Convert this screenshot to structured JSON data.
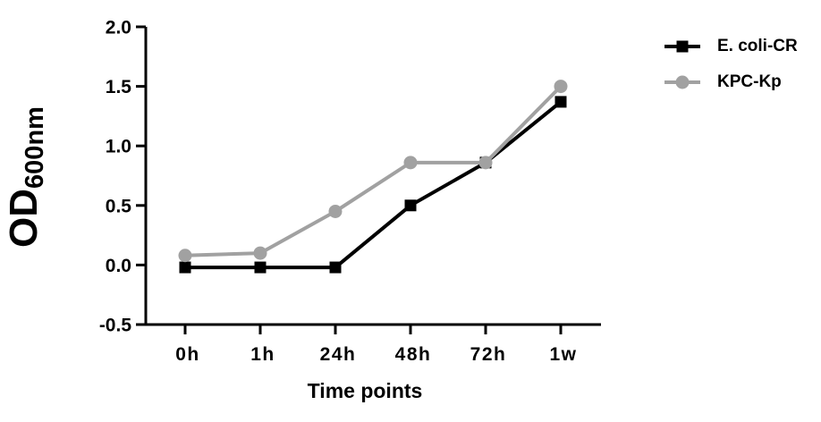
{
  "chart_data": {
    "type": "line",
    "title": "",
    "xlabel": "Time points",
    "ylabel": "OD",
    "ylabel_subscript": "600nm",
    "categories": [
      "0h",
      "1h",
      "24h",
      "48h",
      "72h",
      "1w"
    ],
    "series": [
      {
        "name": "E. coli-CR",
        "color": "#000000",
        "marker": "square",
        "values": [
          -0.02,
          -0.02,
          -0.02,
          0.5,
          0.86,
          1.37
        ]
      },
      {
        "name": "KPC-Kp",
        "color": "#a1a1a1",
        "marker": "circle",
        "values": [
          0.08,
          0.1,
          0.45,
          0.86,
          0.86,
          1.5
        ]
      }
    ],
    "ylim": [
      -0.5,
      2.0
    ],
    "ytick_values": [
      2.0,
      1.5,
      1.0,
      0.5,
      0.0,
      -0.5
    ],
    "ytick_labels": [
      "2.0",
      "1.5",
      "1.0",
      "0.5",
      "0.0",
      "-0.5"
    ],
    "grid": false,
    "legend_position": "right-top",
    "axis_color": "#000000",
    "background_color": "#ffffff"
  }
}
